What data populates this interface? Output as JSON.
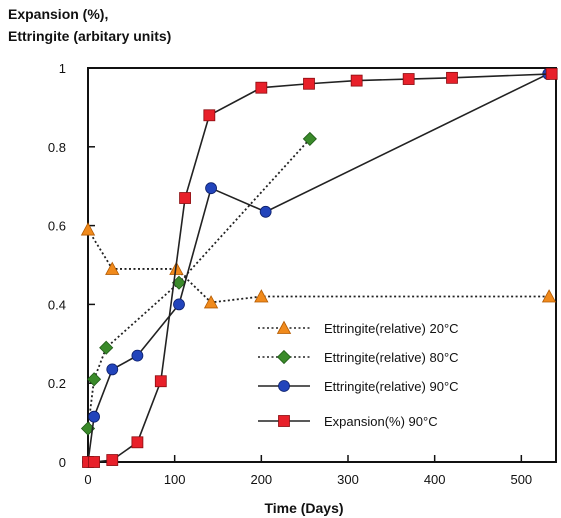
{
  "chart_data": {
    "type": "line",
    "ylabel_lines": [
      "Expansion (%),",
      "Ettringite (arbitary units)"
    ],
    "xlabel": "Time (Days)",
    "xlim": [
      0,
      540
    ],
    "ylim": [
      0,
      1
    ],
    "xticks": [
      0,
      100,
      200,
      300,
      400,
      500
    ],
    "yticks": [
      0,
      0.2,
      0.4,
      0.6,
      0.8,
      1
    ],
    "ytick_labels": [
      "0",
      "0.2",
      "0.4",
      "0.6",
      "0.8",
      "1"
    ],
    "grid": false,
    "legend_position": "lower-right",
    "series": [
      {
        "name": "Ettringite(relative) 20°C",
        "marker": "triangle",
        "color": "#f08a1c",
        "line_style": "dotted",
        "x": [
          0,
          28,
          102,
          142,
          200,
          532
        ],
        "y": [
          0.59,
          0.49,
          0.49,
          0.405,
          0.42,
          0.42
        ]
      },
      {
        "name": "Ettringite(relative) 80°C",
        "marker": "diamond",
        "color": "#3a8a2a",
        "line_style": "dotted",
        "x": [
          0,
          7,
          21,
          105,
          256
        ],
        "y": [
          0.085,
          0.21,
          0.29,
          0.455,
          0.82
        ]
      },
      {
        "name": "Ettringite(relative) 90°C",
        "marker": "circle",
        "color": "#2244bb",
        "line_style": "solid",
        "x": [
          0,
          7,
          28,
          57,
          105,
          142,
          205,
          531
        ],
        "y": [
          0.0,
          0.115,
          0.235,
          0.27,
          0.4,
          0.695,
          0.635,
          0.985
        ]
      },
      {
        "name": "Expansion(%) 90°C",
        "marker": "square",
        "color": "#e8202a",
        "line_style": "solid",
        "x": [
          0,
          7,
          28,
          57,
          84,
          112,
          140,
          200,
          255,
          310,
          370,
          420,
          535
        ],
        "y": [
          0.0,
          0.0,
          0.005,
          0.05,
          0.205,
          0.67,
          0.88,
          0.95,
          0.96,
          0.968,
          0.972,
          0.975,
          0.985
        ]
      }
    ]
  }
}
